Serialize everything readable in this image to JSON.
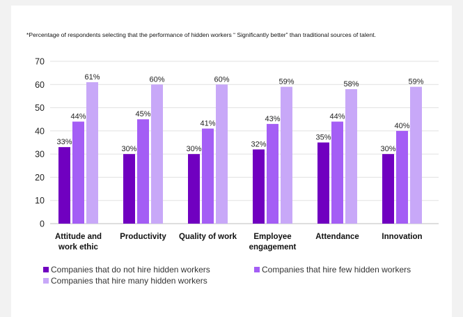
{
  "note": "*Percentage of respondents selecting that the performance of hidden workers “ Significantly better” than traditional sources of talent.",
  "chart_data": {
    "type": "bar",
    "categories": [
      "Attitude and work ethic",
      "Productivity",
      "Quality of work",
      "Employee engagement",
      "Attendance",
      "Innovation"
    ],
    "category_lines": [
      [
        "Attitude and",
        "work ethic"
      ],
      [
        "Productivity"
      ],
      [
        "Quality of work"
      ],
      [
        "Employee",
        "engagement"
      ],
      [
        "Attendance"
      ],
      [
        "Innovation"
      ]
    ],
    "series": [
      {
        "name": "Companies that do not hire hidden workers",
        "color": "#7000c0",
        "values": [
          33,
          30,
          30,
          32,
          35,
          30
        ]
      },
      {
        "name": "Companies that hire few hidden workers",
        "color": "#a45ef5",
        "values": [
          44,
          45,
          41,
          43,
          44,
          40
        ]
      },
      {
        "name": "Companies that hire many hidden workers",
        "color": "#c8a8f8",
        "values": [
          61,
          60,
          60,
          59,
          58,
          59
        ]
      }
    ],
    "ylim": [
      0,
      70
    ],
    "yticks": [
      0,
      10,
      20,
      30,
      40,
      50,
      60,
      70
    ],
    "value_suffix": "%",
    "grid": true,
    "legend_position": "bottom"
  }
}
